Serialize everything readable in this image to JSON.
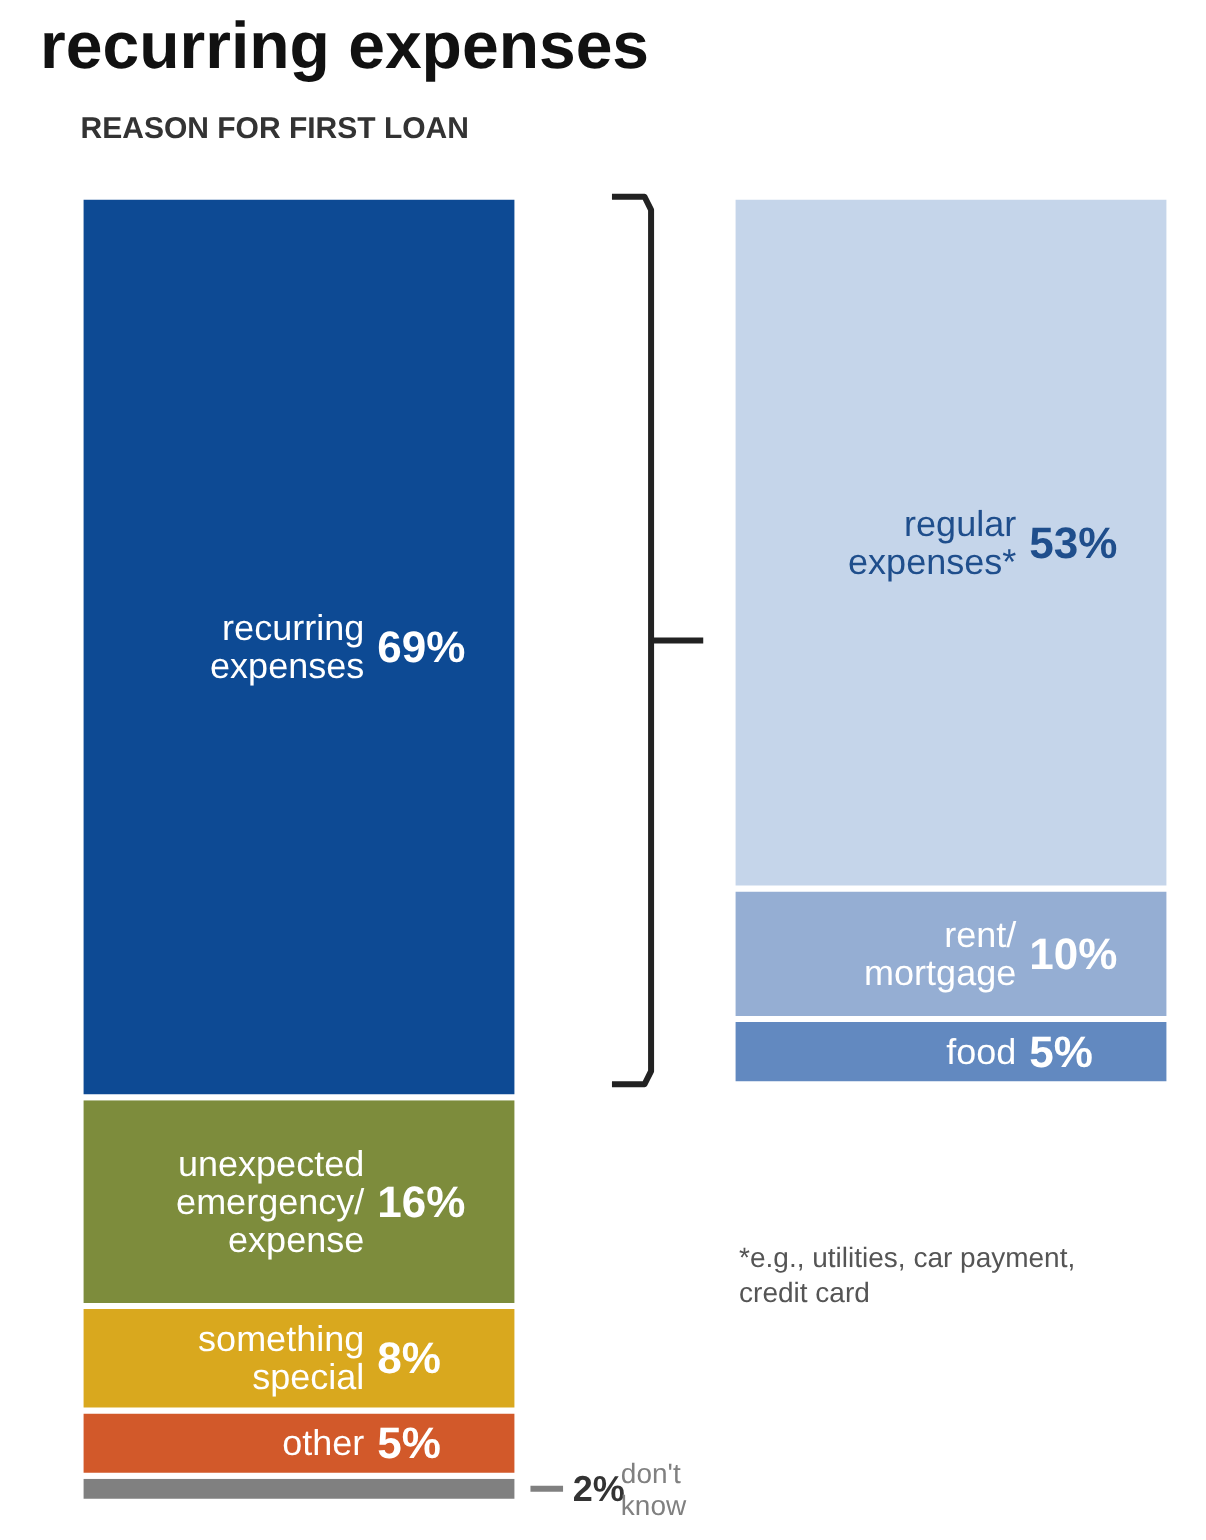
{
  "chart_data": [
    {
      "type": "bar",
      "stacked": true,
      "title": "recurring expenses",
      "subtitle": "REASON FOR FIRST LOAN",
      "categories": [
        null
      ],
      "series": [
        {
          "name": "don't know",
          "color": "#808080",
          "values": [
            2
          ],
          "value_labels": [
            "2%"
          ]
        },
        {
          "name": "other",
          "color": "#d2592a",
          "values": [
            5
          ],
          "value_labels": [
            "5%"
          ]
        },
        {
          "name": "something\nspecial",
          "color": "#d9a81e",
          "values": [
            8
          ],
          "value_labels": [
            "8%"
          ]
        },
        {
          "name": "unexpected\nemergency/\nexpense",
          "color": "#7d8c3c",
          "values": [
            16
          ],
          "value_labels": [
            "16%"
          ]
        },
        {
          "name": "recurring\nexpenses",
          "color": "#0d4a94",
          "values": [
            69
          ],
          "value_labels": [
            "69%"
          ]
        }
      ],
      "grid": false,
      "tick_labels": false
    },
    {
      "type": "bar",
      "stacked": true,
      "categories": [
        null
      ],
      "series": [
        {
          "name": "food",
          "color": "#6289c0",
          "values": [
            5
          ],
          "value_labels": [
            "5%"
          ]
        },
        {
          "name": "rent/\nmortgage",
          "color": "#95aed3",
          "values": [
            10
          ],
          "value_labels": [
            "10%"
          ]
        },
        {
          "name": "regular\nexpenses*",
          "color": "#c5d5ea",
          "values": [
            53
          ],
          "value_labels": [
            "53%"
          ]
        }
      ],
      "annotations": [
        "*e.g., utilities, car payment,\ncredit card"
      ],
      "grid": false,
      "tick_labels": false
    }
  ]
}
